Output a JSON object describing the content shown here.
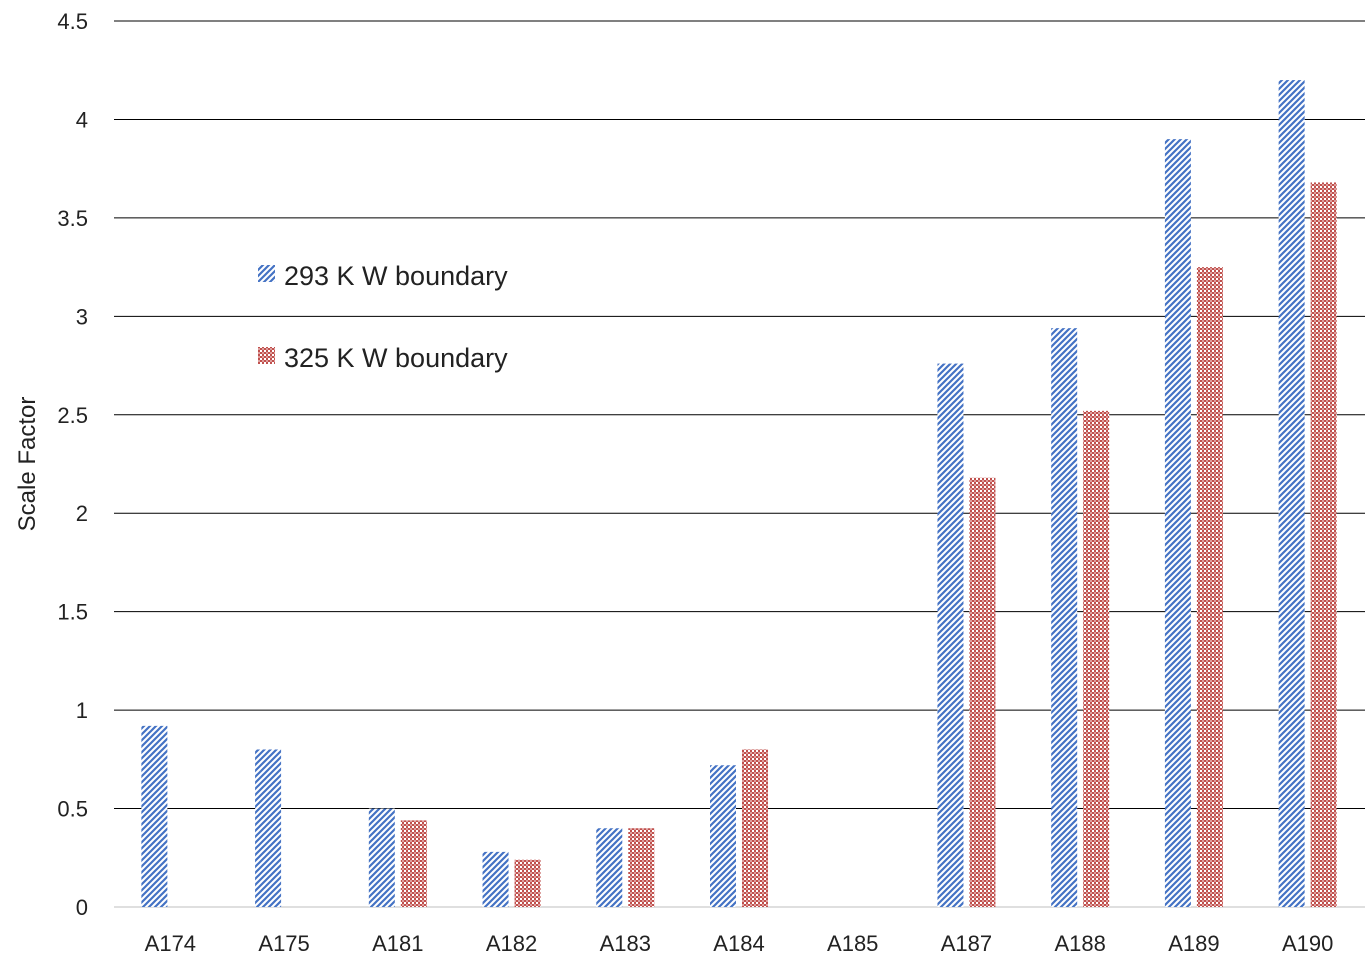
{
  "chart_data": {
    "type": "bar",
    "title": "",
    "xlabel": "",
    "ylabel": "Scale Factor",
    "ylim": [
      0,
      4.5
    ],
    "yticks": [
      "0",
      "0.5",
      "1",
      "1.5",
      "2",
      "2.5",
      "3",
      "3.5",
      "4",
      "4.5"
    ],
    "grid": true,
    "legend_position": "upper-left",
    "categories": [
      "A174",
      "A175",
      "A181",
      "A182",
      "A183",
      "A184",
      "A185",
      "A187",
      "A188",
      "A189",
      "A190"
    ],
    "series": [
      {
        "name": "293 K W boundary",
        "color": "#4472C4",
        "values": [
          0.92,
          0.8,
          0.5,
          0.28,
          0.4,
          0.72,
          null,
          2.76,
          2.94,
          3.9,
          4.2
        ]
      },
      {
        "name": "325 K W boundary",
        "color": "#C0504D",
        "values": [
          null,
          null,
          0.44,
          0.24,
          0.4,
          0.8,
          null,
          2.18,
          2.52,
          3.25,
          3.68
        ]
      }
    ]
  }
}
